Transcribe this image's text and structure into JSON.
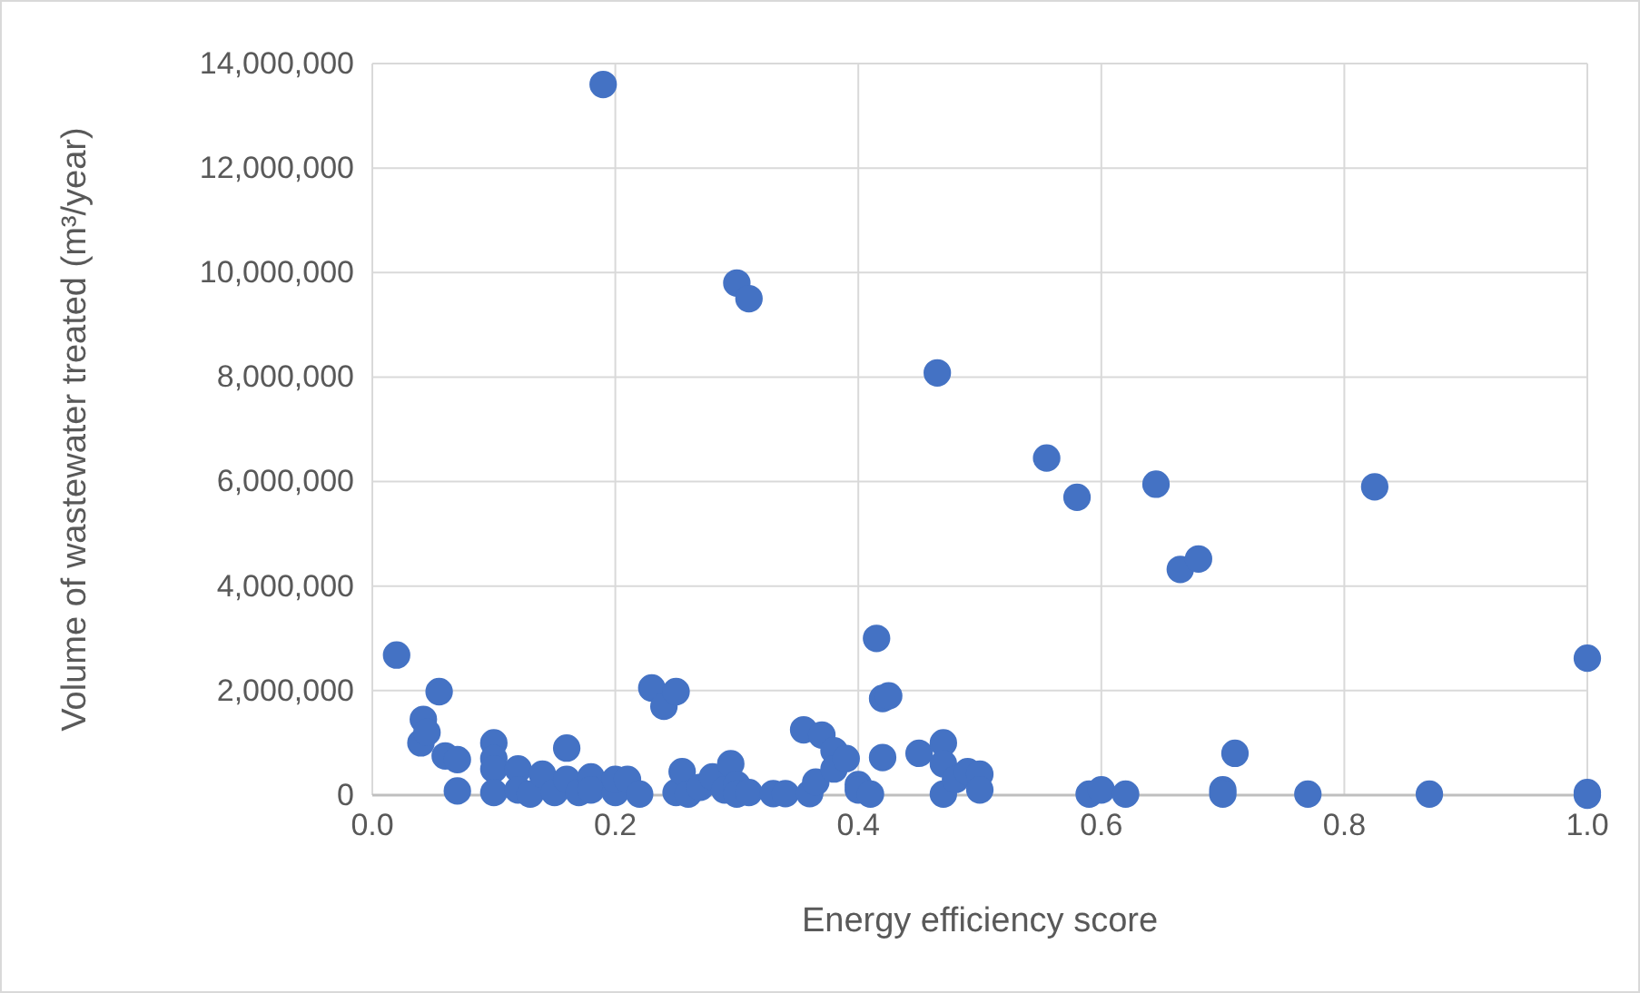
{
  "chart_data": {
    "type": "scatter",
    "xlabel": "Energy efficiency score",
    "ylabel": "Volume of wastewater treated (m³/year)",
    "xlim": [
      0,
      1
    ],
    "xticks": [
      {
        "value": 0,
        "label": "0.0"
      },
      {
        "value": 0.2,
        "label": "0.2"
      },
      {
        "value": 0.4,
        "label": "0.4"
      },
      {
        "value": 0.6,
        "label": "0.6"
      },
      {
        "value": 0.8,
        "label": "0.8"
      },
      {
        "value": 1,
        "label": "1.0"
      }
    ],
    "ylim": [
      0,
      14000000
    ],
    "yticks": [
      {
        "value": 0,
        "label": "0"
      },
      {
        "value": 2000000,
        "label": "2,000,000"
      },
      {
        "value": 4000000,
        "label": "4,000,000"
      },
      {
        "value": 6000000,
        "label": "6,000,000"
      },
      {
        "value": 8000000,
        "label": "8,000,000"
      },
      {
        "value": 10000000,
        "label": "10,000,000"
      },
      {
        "value": 12000000,
        "label": "12,000,000"
      },
      {
        "value": 14000000,
        "label": "14,000,000"
      }
    ],
    "grid": true,
    "marker": "circle",
    "series": [
      {
        "color": "#4472c4",
        "x": [
          0.02,
          0.04,
          0.042,
          0.045,
          0.055,
          0.06,
          0.07,
          0.07,
          0.1,
          0.1,
          0.1,
          0.1,
          0.12,
          0.12,
          0.13,
          0.14,
          0.15,
          0.16,
          0.16,
          0.17,
          0.18,
          0.18,
          0.19,
          0.2,
          0.2,
          0.21,
          0.22,
          0.23,
          0.24,
          0.25,
          0.25,
          0.255,
          0.26,
          0.27,
          0.28,
          0.29,
          0.295,
          0.3,
          0.3,
          0.3,
          0.31,
          0.31,
          0.33,
          0.34,
          0.355,
          0.36,
          0.365,
          0.37,
          0.38,
          0.38,
          0.39,
          0.4,
          0.4,
          0.41,
          0.415,
          0.42,
          0.425,
          0.42,
          0.45,
          0.465,
          0.47,
          0.47,
          0.47,
          0.48,
          0.49,
          0.5,
          0.5,
          0.555,
          0.58,
          0.59,
          0.6,
          0.62,
          0.645,
          0.665,
          0.68,
          0.7,
          0.7,
          0.71,
          0.77,
          0.825,
          0.87,
          1.0,
          1.0,
          1.0
        ],
        "values": [
          2680000,
          1000000,
          1450000,
          1200000,
          1980000,
          750000,
          680000,
          80000,
          1000000,
          700000,
          500000,
          50000,
          500000,
          100000,
          20000,
          400000,
          50000,
          900000,
          300000,
          50000,
          350000,
          100000,
          13600000,
          50000,
          300000,
          300000,
          20000,
          2050000,
          1700000,
          1980000,
          50000,
          450000,
          20000,
          150000,
          350000,
          100000,
          600000,
          9800000,
          200000,
          20000,
          9500000,
          50000,
          30000,
          30000,
          1250000,
          30000,
          250000,
          1150000,
          850000,
          500000,
          700000,
          200000,
          100000,
          20000,
          3000000,
          1850000,
          1900000,
          720000,
          800000,
          8080000,
          1000000,
          600000,
          20000,
          300000,
          450000,
          400000,
          100000,
          6450000,
          5700000,
          20000,
          100000,
          20000,
          5950000,
          4320000,
          4520000,
          100000,
          20000,
          800000,
          20000,
          5900000,
          20000,
          2620000,
          50000,
          0
        ]
      }
    ]
  }
}
